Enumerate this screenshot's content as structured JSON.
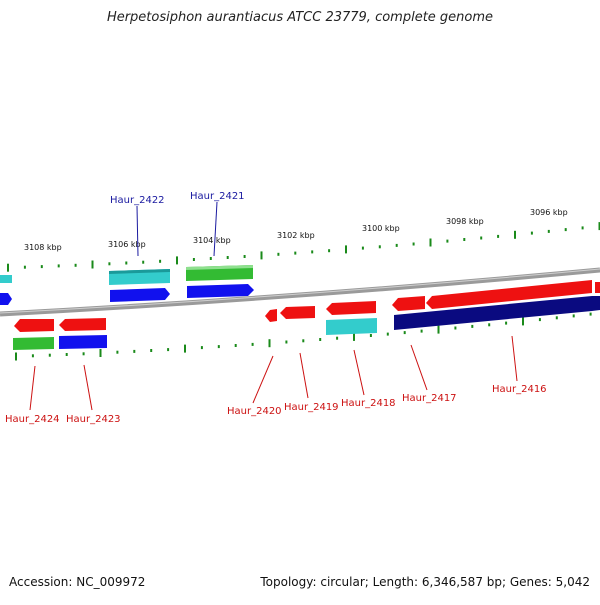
{
  "title": "Herpetosiphon aurantiacus ATCC 23779, complete genome",
  "accession": "Accession: NC_009972",
  "summary": "Topology: circular; Length: 6,346,587 bp; Genes: 5,042",
  "colors": {
    "backbone": "#888888",
    "tick": "#1a8a1a",
    "red": "#ee1111",
    "blue": "#1111ee",
    "navy": "#0a0a80",
    "green": "#33bb33",
    "cyan": "#33cccc",
    "labelBlue": "#1a1aa0",
    "labelRed": "#cc1111"
  },
  "scale_labels": [
    "3108 kbp",
    "3106 kbp",
    "3104 kbp",
    "3102 kbp",
    "3100 kbp",
    "3098 kbp",
    "3096 kbp"
  ],
  "gene_labels": [
    {
      "text": "Haur_2422",
      "color": "labelBlue"
    },
    {
      "text": "Haur_2421",
      "color": "labelBlue"
    },
    {
      "text": "Haur_2424",
      "color": "labelRed"
    },
    {
      "text": "Haur_2423",
      "color": "labelRed"
    },
    {
      "text": "Haur_2420",
      "color": "labelRed"
    },
    {
      "text": "Haur_2419",
      "color": "labelRed"
    },
    {
      "text": "Haur_2418",
      "color": "labelRed"
    },
    {
      "text": "Haur_2417",
      "color": "labelRed"
    },
    {
      "text": "Haur_2416",
      "color": "labelRed"
    }
  ]
}
